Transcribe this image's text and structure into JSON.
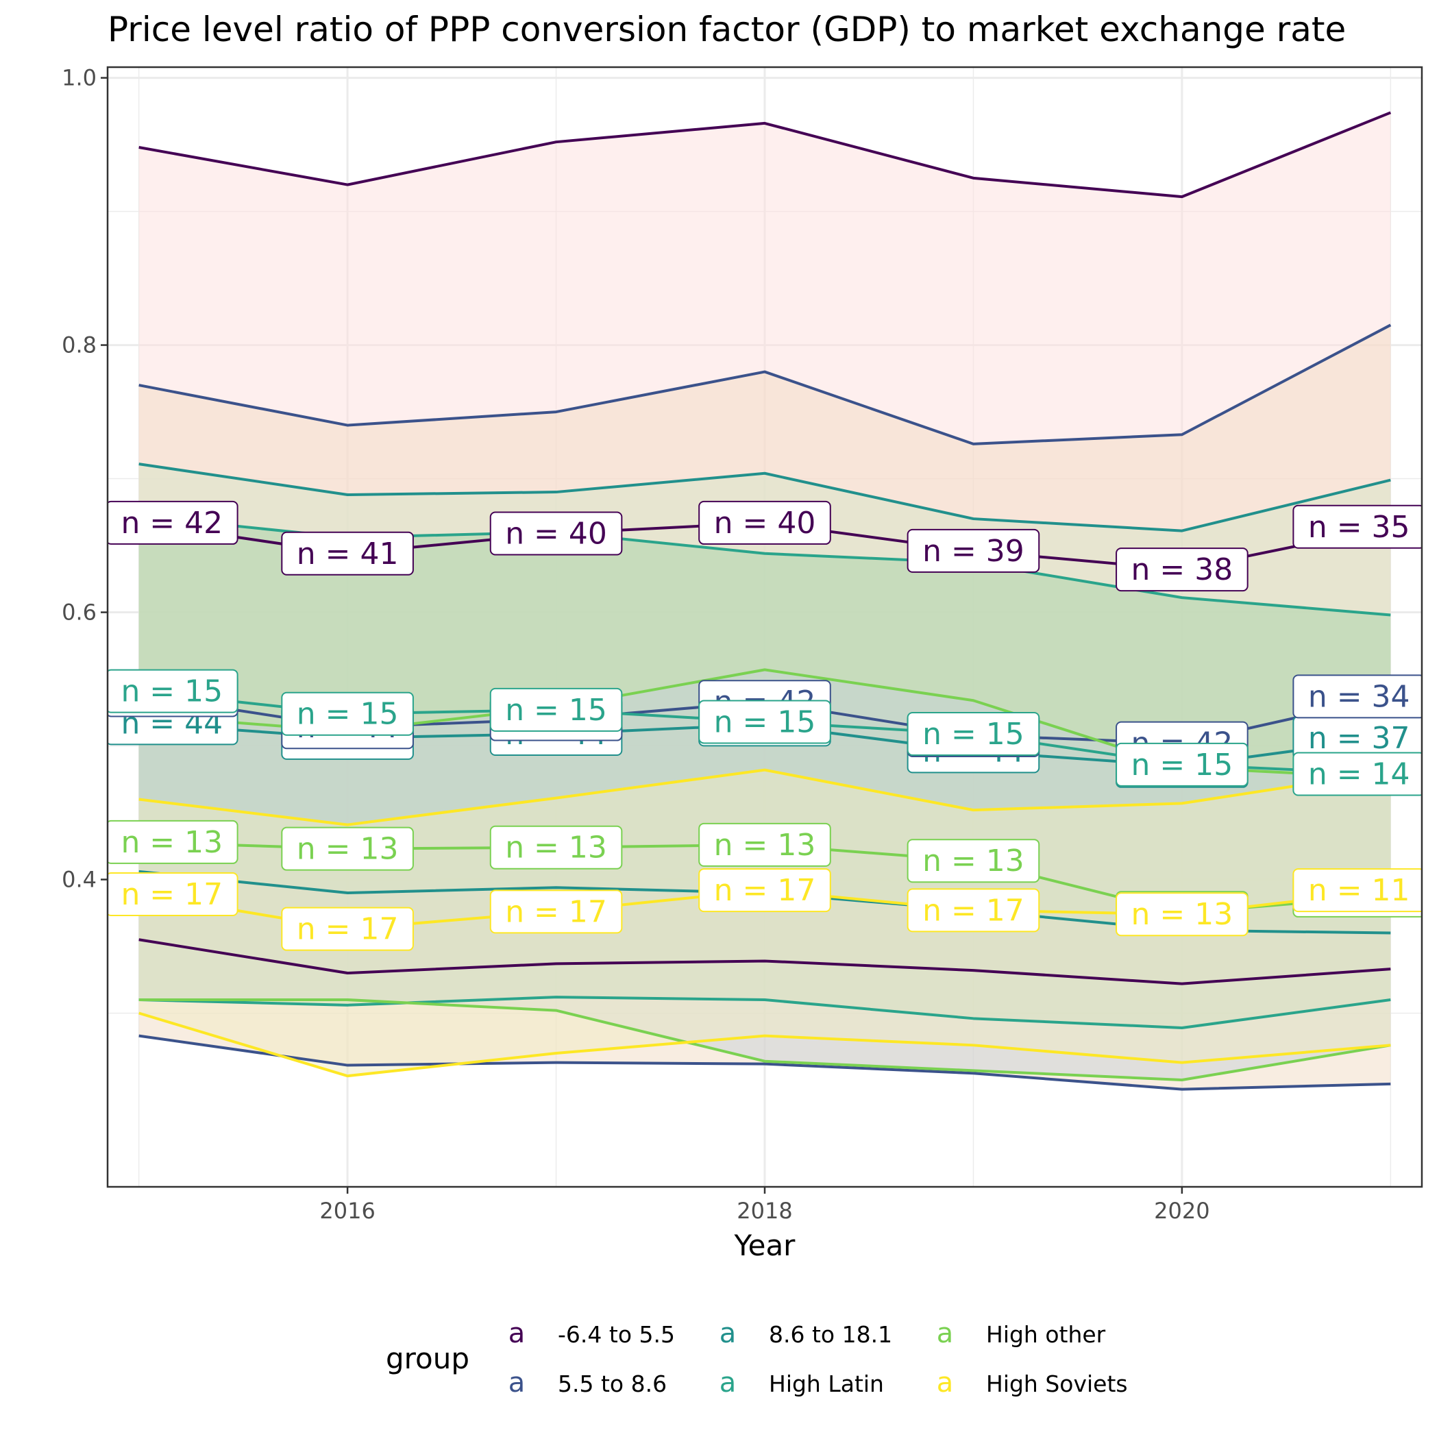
{
  "chart_data": {
    "type": "line",
    "title": "Price level ratio of PPP conversion factor (GDP) to market exchange rate",
    "xlabel": "Year",
    "ylabel": "",
    "xlim": [
      2014.85,
      2021.15
    ],
    "ylim": [
      0.17,
      1.008
    ],
    "x_ticks": [
      2016,
      2018,
      2020
    ],
    "y_ticks": [
      0.4,
      0.6,
      0.8,
      1.0
    ],
    "y_tick_labels": [
      "0.4",
      "0.6",
      "0.8",
      "1.0"
    ],
    "grid": true,
    "legend_position": "bottom",
    "legend_title": "group",
    "x": [
      2015,
      2016,
      2017,
      2018,
      2019,
      2020,
      2021
    ],
    "series": [
      {
        "name": "-6.4 to 5.5",
        "color": "#440154",
        "band_fill": "#fde0dd",
        "mean": [
          0.667,
          0.644,
          0.659,
          0.667,
          0.646,
          0.632,
          0.664
        ],
        "upper": [
          0.948,
          0.92,
          0.952,
          0.966,
          0.925,
          0.911,
          0.974
        ],
        "lower": [
          0.355,
          0.33,
          0.337,
          0.339,
          0.332,
          0.322,
          0.333
        ],
        "n": [
          42,
          41,
          40,
          40,
          39,
          38,
          35
        ]
      },
      {
        "name": "5.5 to 8.6",
        "color": "#3b528b",
        "band_fill": "#f2dcc4",
        "mean": [
          0.538,
          0.514,
          0.52,
          0.533,
          0.508,
          0.502,
          0.537
        ],
        "upper": [
          0.77,
          0.74,
          0.75,
          0.78,
          0.726,
          0.733,
          0.815
        ],
        "lower": [
          0.283,
          0.261,
          0.263,
          0.262,
          0.255,
          0.243,
          0.247
        ],
        "n": [
          44,
          44,
          44,
          42,
          44,
          42,
          34
        ]
      },
      {
        "name": "8.6 to 18.1",
        "color": "#21908c",
        "band_fill": "#d6e6c8",
        "mean": [
          0.517,
          0.506,
          0.509,
          0.516,
          0.496,
          0.485,
          0.506
        ],
        "upper": [
          0.711,
          0.688,
          0.69,
          0.704,
          0.67,
          0.661,
          0.699
        ],
        "lower": [
          0.406,
          0.39,
          0.394,
          0.39,
          0.377,
          0.362,
          0.36
        ],
        "n": [
          44,
          44,
          44,
          44,
          44,
          42,
          37
        ]
      },
      {
        "name": "High Latin",
        "color": "#2aa48b",
        "band_fill": "#a8d4a8",
        "mean": [
          0.541,
          0.524,
          0.527,
          0.518,
          0.509,
          0.486,
          0.479
        ],
        "upper": [
          0.672,
          0.656,
          0.66,
          0.644,
          0.637,
          0.611,
          0.598
        ],
        "lower": [
          0.31,
          0.306,
          0.312,
          0.31,
          0.296,
          0.289,
          0.31
        ],
        "n": [
          15,
          15,
          15,
          15,
          15,
          15,
          14
        ]
      },
      {
        "name": "High other",
        "color": "#7ad151",
        "band_fill": "#c8d2d8",
        "mean": [
          0.428,
          0.423,
          0.424,
          0.426,
          0.414,
          0.375,
          0.388
        ],
        "upper": [
          0.523,
          0.511,
          0.529,
          0.557,
          0.534,
          0.484,
          0.476
        ],
        "lower": [
          0.31,
          0.31,
          0.302,
          0.264,
          0.257,
          0.25,
          0.276
        ],
        "n": [
          13,
          13,
          13,
          13,
          13,
          13,
          11
        ]
      },
      {
        "name": "High Soviets",
        "color": "#fde725",
        "band_fill": "#f0ecc4",
        "mean": [
          0.389,
          0.363,
          0.376,
          0.392,
          0.377,
          0.374,
          0.392
        ],
        "upper": [
          0.46,
          0.441,
          0.461,
          0.482,
          0.452,
          0.457,
          0.481
        ],
        "lower": [
          0.3,
          0.253,
          0.27,
          0.283,
          0.276,
          0.263,
          0.276
        ],
        "n": [
          17,
          17,
          17,
          17,
          17,
          13,
          11
        ]
      }
    ]
  },
  "legend": {
    "key_glyph": "a",
    "items": [
      {
        "label": "-6.4 to 5.5",
        "color": "#440154"
      },
      {
        "label": "5.5 to 8.6",
        "color": "#3b528b"
      },
      {
        "label": "8.6 to 18.1",
        "color": "#21908c"
      },
      {
        "label": "High Latin",
        "color": "#2aa48b"
      },
      {
        "label": "High other",
        "color": "#7ad151"
      },
      {
        "label": "High Soviets",
        "color": "#fde725"
      }
    ]
  }
}
